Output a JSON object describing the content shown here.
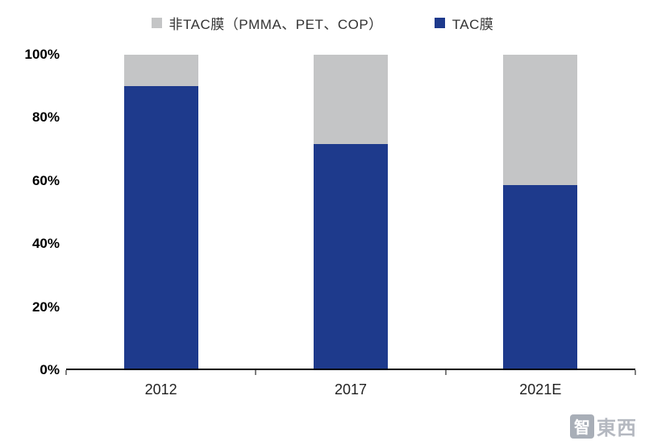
{
  "chart_data": {
    "type": "bar",
    "subtype": "stacked-100-percent",
    "title": "",
    "xlabel": "",
    "ylabel": "",
    "ylim": [
      0,
      100
    ],
    "grid": false,
    "legend_position": "top",
    "categories": [
      "2012",
      "2017",
      "2021E"
    ],
    "series": [
      {
        "name": "TAC膜",
        "color": "#1e3a8c",
        "values": [
          90,
          71.5,
          58.5
        ]
      },
      {
        "name": "非TAC膜（PMMA、PET、COP）",
        "color": "#c4c5c6",
        "values": [
          10,
          28.5,
          41.5
        ]
      }
    ],
    "legend": [
      {
        "label": "非TAC膜（PMMA、PET、COP）",
        "color": "#c4c5c6"
      },
      {
        "label": "TAC膜",
        "color": "#1e3a8c"
      }
    ],
    "yticks": [
      "100%",
      "80%",
      "60%",
      "40%",
      "20%",
      "0%"
    ]
  },
  "watermark": {
    "badge_char": "智",
    "text": "東西"
  }
}
